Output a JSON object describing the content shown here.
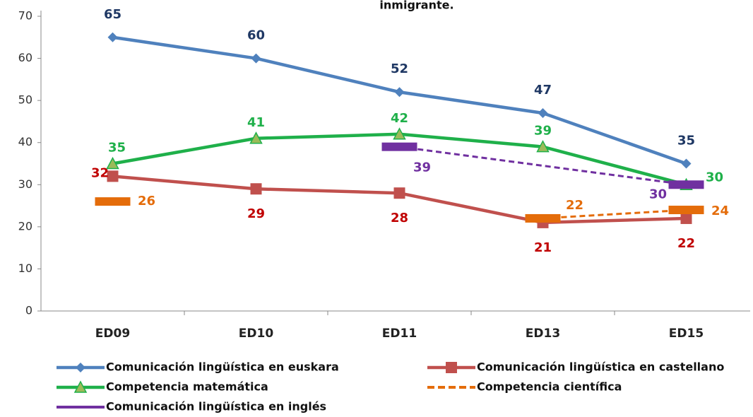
{
  "chart_data": {
    "type": "line",
    "title": "inmigrante.",
    "categories": [
      "ED09",
      "ED10",
      "ED11",
      "ED13",
      "ED15"
    ],
    "ylim": [
      0,
      70
    ],
    "yticks": [
      0,
      10,
      20,
      30,
      40,
      50,
      60,
      70
    ],
    "grid": false,
    "legend": "bottom",
    "series": [
      {
        "name": "Comunicación lingüística en euskara",
        "color": "#4f81bd",
        "label_color": "#1f3864",
        "marker": "diamond",
        "values": [
          65,
          60,
          52,
          47,
          35
        ]
      },
      {
        "name": "Comunicación lingüística en castellano",
        "color": "#c0504d",
        "label_color": "#c00000",
        "marker": "square",
        "values": [
          32,
          29,
          28,
          21,
          22
        ]
      },
      {
        "name": "Competencia matemática",
        "color": "#1fb04a",
        "label_color": "#1fb04a",
        "marker": "triangle",
        "values": [
          35,
          41,
          42,
          39,
          30
        ]
      },
      {
        "name": "Competencia científica",
        "color": "#e46c0a",
        "label_color": "#e46c0a",
        "marker": "dash",
        "dashed": true,
        "values": [
          26,
          null,
          null,
          22,
          24
        ]
      },
      {
        "name": "Comunicación lingüística en inglés",
        "color": "#7030a0",
        "label_color": "#7030a0",
        "marker": "dash",
        "dashed": true,
        "connect_gaps": true,
        "values": [
          null,
          null,
          39,
          null,
          30
        ]
      }
    ]
  }
}
